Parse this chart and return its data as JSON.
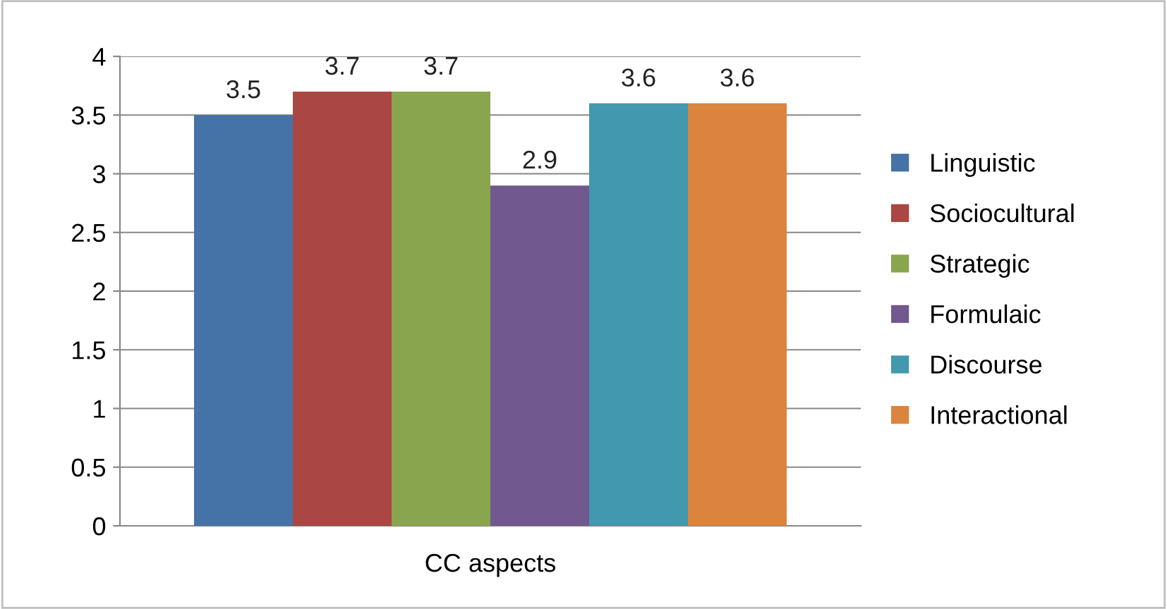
{
  "chart_data": {
    "type": "bar",
    "categories": [
      "CC aspects"
    ],
    "series": [
      {
        "name": "Linguistic",
        "color": "#4572a7",
        "values": [
          3.5
        ]
      },
      {
        "name": "Sociocultural",
        "color": "#aa4643",
        "values": [
          3.7
        ]
      },
      {
        "name": "Strategic",
        "color": "#89a54e",
        "values": [
          3.7
        ]
      },
      {
        "name": "Formulaic",
        "color": "#71588f",
        "values": [
          2.9
        ]
      },
      {
        "name": "Discourse",
        "color": "#4198af",
        "values": [
          3.6
        ]
      },
      {
        "name": "Interactional",
        "color": "#db843d",
        "values": [
          3.6
        ]
      }
    ],
    "ylim": [
      0,
      4
    ],
    "yticks": [
      0,
      0.5,
      1,
      1.5,
      2,
      2.5,
      3,
      3.5,
      4
    ],
    "grid": "y",
    "legend": "right",
    "data_labels": true
  }
}
